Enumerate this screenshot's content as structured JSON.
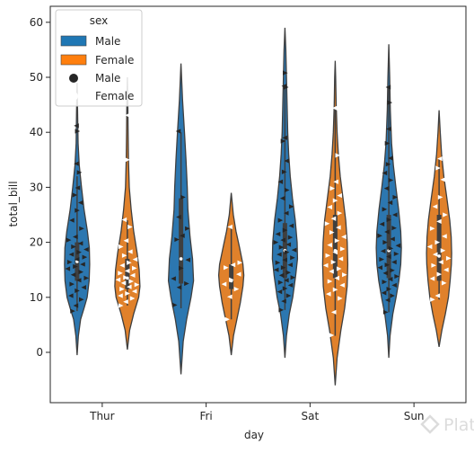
{
  "chart_data": {
    "type": "violin",
    "xlabel": "day",
    "ylabel": "total_bill",
    "categories": [
      "Thur",
      "Fri",
      "Sat",
      "Sun"
    ],
    "ylim": [
      -10,
      63
    ],
    "yticks": [
      0,
      10,
      20,
      30,
      40,
      50,
      60
    ],
    "legend": {
      "title": "sex",
      "placement": "top-left",
      "entries": [
        {
          "label": "Male",
          "kind": "patch",
          "color": "#1f77b4"
        },
        {
          "label": "Female",
          "kind": "patch",
          "color": "#ff7f0e"
        },
        {
          "label": "Male",
          "kind": "marker",
          "color": "#262626"
        },
        {
          "label": "Female",
          "kind": "marker",
          "color": "#ffffff"
        }
      ]
    },
    "colors": {
      "Male": "#2c77b0",
      "Female": "#e0812b",
      "Male_points": "#262626",
      "Female_points": "#ffffff",
      "outline": "#3f3f3f"
    },
    "series": [
      {
        "name": "Male",
        "violins": [
          {
            "day": "Thur",
            "ymin": -0.5,
            "ymax": 49,
            "profile": [
              [
                -0.5,
                0
              ],
              [
                3,
                0.1
              ],
              [
                6,
                0.28
              ],
              [
                8,
                0.55
              ],
              [
                10,
                0.8
              ],
              [
                13,
                0.96
              ],
              [
                16,
                1.0
              ],
              [
                19,
                0.97
              ],
              [
                22,
                0.82
              ],
              [
                26,
                0.55
              ],
              [
                30,
                0.35
              ],
              [
                34,
                0.17
              ],
              [
                38,
                0.08
              ],
              [
                44,
                0.04
              ],
              [
                49,
                0
              ]
            ],
            "q1": 13,
            "median": 16.5,
            "q3": 20,
            "whisker_lo": 7.5,
            "whisker_hi": 32,
            "points": [
              7.5,
              8.5,
              9.6,
              10.3,
              11.2,
              11.8,
              12.4,
              13.1,
              13.5,
              14.1,
              14.6,
              15.2,
              15.6,
              16,
              16.4,
              16.9,
              17.3,
              17.8,
              18.2,
              18.7,
              19.2,
              19.8,
              20.4,
              21,
              22.5,
              24,
              25.8,
              27.2,
              28.6,
              29.9,
              32.7,
              34.3,
              40.2,
              41.2
            ]
          },
          {
            "day": "Fri",
            "ymin": -4,
            "ymax": 52.5,
            "profile": [
              [
                -4,
                0
              ],
              [
                2,
                0.18
              ],
              [
                6,
                0.45
              ],
              [
                10,
                0.8
              ],
              [
                13,
                1.0
              ],
              [
                17,
                0.92
              ],
              [
                21,
                0.72
              ],
              [
                26,
                0.55
              ],
              [
                30,
                0.5
              ],
              [
                35,
                0.4
              ],
              [
                40,
                0.28
              ],
              [
                46,
                0.12
              ],
              [
                52.5,
                0
              ]
            ],
            "q1": 12.5,
            "median": 17,
            "q3": 28,
            "whisker_lo": 8,
            "whisker_hi": 40,
            "points": [
              8.6,
              11.8,
              12.5,
              13.4,
              15.3,
              16.8,
              20.5,
              21.2,
              22.5,
              24.6,
              28.2,
              40.2
            ]
          },
          {
            "day": "Sat",
            "ymin": -1,
            "ymax": 59,
            "profile": [
              [
                -1,
                0
              ],
              [
                3,
                0.12
              ],
              [
                7,
                0.35
              ],
              [
                10,
                0.62
              ],
              [
                14,
                0.86
              ],
              [
                17,
                1.0
              ],
              [
                20,
                0.97
              ],
              [
                24,
                0.82
              ],
              [
                28,
                0.6
              ],
              [
                32,
                0.42
              ],
              [
                36,
                0.3
              ],
              [
                40,
                0.22
              ],
              [
                45,
                0.17
              ],
              [
                50,
                0.12
              ],
              [
                55,
                0.07
              ],
              [
                59,
                0
              ]
            ],
            "q1": 13.5,
            "median": 18.5,
            "q3": 23.5,
            "whisker_lo": 7.7,
            "whisker_hi": 48,
            "points": [
              7.7,
              9.3,
              10.3,
              11,
              11.6,
              12.2,
              12.7,
              13.1,
              13.6,
              14,
              14.5,
              15,
              15.4,
              15.9,
              16.3,
              16.8,
              17.2,
              17.8,
              18.2,
              18.6,
              19.1,
              19.6,
              20,
              20.4,
              20.9,
              21.5,
              22.2,
              23,
              24,
              25.3,
              26.5,
              28,
              29.5,
              31,
              32.8,
              34.8,
              38.4,
              39,
              48.2,
              48.4,
              50.8
            ]
          },
          {
            "day": "Sun",
            "ymin": -1,
            "ymax": 56,
            "profile": [
              [
                -1,
                0
              ],
              [
                3,
                0.1
              ],
              [
                7,
                0.32
              ],
              [
                10,
                0.58
              ],
              [
                13,
                0.8
              ],
              [
                16,
                0.95
              ],
              [
                19,
                1.0
              ],
              [
                22,
                0.95
              ],
              [
                26,
                0.78
              ],
              [
                30,
                0.56
              ],
              [
                34,
                0.36
              ],
              [
                38,
                0.22
              ],
              [
                44,
                0.12
              ],
              [
                50,
                0.07
              ],
              [
                56,
                0
              ]
            ],
            "q1": 13.5,
            "median": 18.5,
            "q3": 25,
            "whisker_lo": 7.3,
            "whisker_hi": 48,
            "points": [
              7.3,
              9.5,
              10.3,
              10.8,
              11.5,
              12.2,
              12.8,
              13.3,
              13.8,
              14.4,
              14.9,
              15.4,
              15.9,
              16.4,
              16.9,
              17.4,
              17.9,
              18.4,
              18.9,
              19.4,
              20,
              20.6,
              21.2,
              21.9,
              22.6,
              23.3,
              24.1,
              25,
              26,
              27.2,
              28.2,
              29.8,
              31.3,
              32.6,
              34.2,
              35.3,
              38,
              40.6,
              45.4,
              48.2
            ]
          }
        ]
      },
      {
        "name": "Female",
        "violins": [
          {
            "day": "Thur",
            "ymin": 0.5,
            "ymax": 50,
            "profile": [
              [
                0.5,
                0
              ],
              [
                4,
                0.18
              ],
              [
                7,
                0.5
              ],
              [
                10,
                0.9
              ],
              [
                12,
                1.0
              ],
              [
                15,
                0.94
              ],
              [
                18,
                0.78
              ],
              [
                22,
                0.5
              ],
              [
                26,
                0.3
              ],
              [
                30,
                0.15
              ],
              [
                35,
                0.09
              ],
              [
                40,
                0.06
              ],
              [
                45,
                0.04
              ],
              [
                50,
                0
              ]
            ],
            "q1": 11.5,
            "median": 13.5,
            "q3": 17,
            "whisker_lo": 8.5,
            "whisker_hi": 24,
            "points": [
              8.5,
              9.2,
              9.8,
              10.3,
              10.7,
              11.1,
              11.5,
              11.9,
              12.3,
              12.6,
              12.9,
              13.2,
              13.6,
              14,
              14.4,
              14.8,
              15.3,
              15.8,
              16.3,
              16.9,
              17.6,
              18.3,
              19.2,
              20.3,
              22.8,
              24.1,
              35,
              43.1
            ]
          },
          {
            "day": "Fri",
            "ymin": -0.5,
            "ymax": 29,
            "profile": [
              [
                -0.5,
                0
              ],
              [
                3,
                0.18
              ],
              [
                6,
                0.45
              ],
              [
                9,
                0.72
              ],
              [
                12,
                0.93
              ],
              [
                14,
                1.0
              ],
              [
                16,
                0.93
              ],
              [
                19,
                0.66
              ],
              [
                22,
                0.38
              ],
              [
                25,
                0.16
              ],
              [
                29,
                0
              ]
            ],
            "q1": 11.5,
            "median": 13,
            "q3": 16,
            "whisker_lo": 6,
            "whisker_hi": 22.5,
            "points": [
              6,
              10.1,
              11.5,
              12.4,
              13.2,
              14.2,
              15.4,
              15.9,
              16.3,
              22.8
            ]
          },
          {
            "day": "Sat",
            "ymin": -6,
            "ymax": 53,
            "profile": [
              [
                -6,
                0
              ],
              [
                -1,
                0.15
              ],
              [
                4,
                0.45
              ],
              [
                8,
                0.75
              ],
              [
                12,
                0.95
              ],
              [
                16,
                1.0
              ],
              [
                20,
                0.96
              ],
              [
                24,
                0.84
              ],
              [
                28,
                0.62
              ],
              [
                32,
                0.4
              ],
              [
                36,
                0.25
              ],
              [
                40,
                0.15
              ],
              [
                45,
                0.08
              ],
              [
                50,
                0.04
              ],
              [
                53,
                0
              ]
            ],
            "q1": 13.5,
            "median": 18.5,
            "q3": 25,
            "whisker_lo": 3,
            "whisker_hi": 44.5,
            "points": [
              3.1,
              7.3,
              9.8,
              10.6,
              11.4,
              12.2,
              12.9,
              13.5,
              14.1,
              14.7,
              15.2,
              15.8,
              16.4,
              17,
              17.6,
              18.2,
              18.8,
              19.5,
              20.3,
              21,
              21.8,
              22.7,
              23.4,
              24.3,
              25.3,
              26.4,
              27.6,
              28.5,
              29.8,
              31,
              35.8,
              44.4
            ]
          },
          {
            "day": "Sun",
            "ymin": 1,
            "ymax": 44,
            "profile": [
              [
                1,
                0
              ],
              [
                4,
                0.22
              ],
              [
                7,
                0.5
              ],
              [
                10,
                0.74
              ],
              [
                13,
                0.88
              ],
              [
                16,
                0.98
              ],
              [
                18,
                1.0
              ],
              [
                21,
                0.96
              ],
              [
                24,
                0.85
              ],
              [
                28,
                0.62
              ],
              [
                32,
                0.38
              ],
              [
                36,
                0.2
              ],
              [
                40,
                0.09
              ],
              [
                44,
                0
              ]
            ],
            "q1": 13,
            "median": 17.5,
            "q3": 25,
            "whisker_lo": 9.6,
            "whisker_hi": 35.2,
            "points": [
              9.6,
              10.3,
              12.6,
              13.4,
              14.2,
              15,
              15.8,
              16.4,
              17.1,
              17.8,
              18.5,
              19.2,
              20,
              21.1,
              22.5,
              23.8,
              25,
              26.5,
              28.2,
              31.4,
              33.5,
              35.2
            ]
          }
        ]
      }
    ]
  },
  "watermark": "Platzi"
}
